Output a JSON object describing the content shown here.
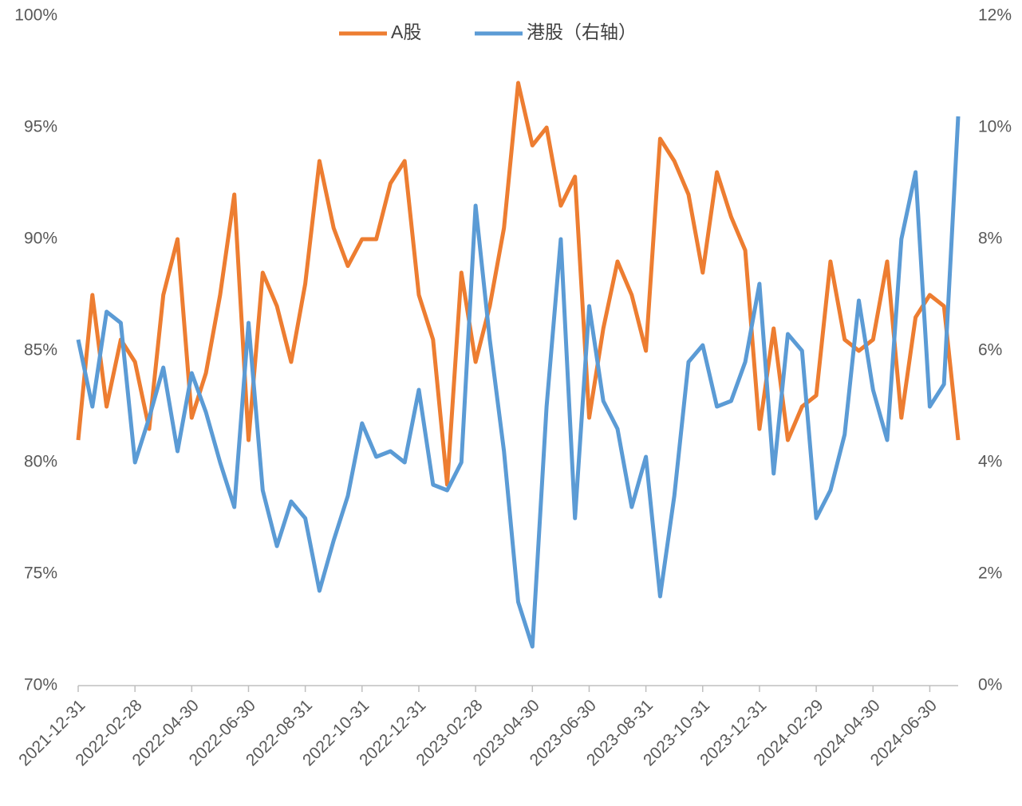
{
  "chart_data": {
    "type": "line",
    "categories": [
      "2021-12-31",
      null,
      null,
      null,
      "2022-02-28",
      null,
      null,
      null,
      "2022-04-30",
      null,
      null,
      null,
      "2022-06-30",
      null,
      null,
      null,
      "2022-08-31",
      null,
      null,
      null,
      "2022-10-31",
      null,
      null,
      null,
      "2022-12-31",
      null,
      null,
      null,
      "2023-02-28",
      null,
      null,
      null,
      "2023-04-30",
      null,
      null,
      null,
      "2023-06-30",
      null,
      null,
      null,
      "2023-08-31",
      null,
      null,
      null,
      "2023-10-31",
      null,
      null,
      null,
      "2023-12-31",
      null,
      null,
      null,
      "2024-02-29",
      null,
      null,
      null,
      "2024-04-30",
      null,
      null,
      null,
      "2024-06-30",
      null,
      null
    ],
    "series": [
      {
        "name": "A股",
        "color": "#ed7d31",
        "values": [
          81,
          87.5,
          82.5,
          85.5,
          84.5,
          81.5,
          87.5,
          90,
          82,
          84,
          87.5,
          92,
          81,
          88.5,
          87,
          84.5,
          88,
          93.5,
          90.5,
          88.8,
          90,
          90,
          92.5,
          93.5,
          87.5,
          85.5,
          79,
          88.5,
          84.5,
          87,
          90.5,
          97,
          94.2,
          95,
          91.5,
          92.8,
          82,
          86,
          89,
          87.5,
          85,
          94.5,
          93.5,
          92,
          88.5,
          93,
          91,
          89.5,
          81.5,
          86,
          81,
          82.5,
          83,
          89,
          85.5,
          85,
          85.5,
          89,
          82,
          86.5,
          87.5,
          87,
          81
        ]
      },
      {
        "name": "港股（右轴）",
        "color": "#5b9bd5",
        "axis": "y2",
        "values": [
          6.2,
          5.0,
          6.7,
          6.5,
          4.0,
          4.8,
          5.7,
          4.2,
          5.6,
          4.9,
          4.0,
          3.2,
          6.5,
          3.5,
          2.5,
          3.3,
          3.0,
          1.7,
          2.6,
          3.4,
          4.7,
          4.1,
          4.2,
          4.0,
          5.3,
          3.6,
          3.5,
          4.0,
          8.6,
          6.2,
          4.2,
          1.5,
          0.7,
          5.0,
          8.0,
          3.0,
          6.8,
          5.1,
          4.6,
          3.2,
          4.1,
          1.6,
          3.4,
          5.8,
          6.1,
          5.0,
          5.1,
          5.8,
          7.2,
          3.8,
          6.3,
          6.0,
          3.0,
          3.5,
          4.5,
          6.9,
          5.3,
          4.4,
          8.0,
          9.2,
          5.0,
          5.4,
          10.2
        ]
      }
    ],
    "ylim": [
      70,
      100
    ],
    "yticks": [
      {
        "value": 70,
        "label": "70%"
      },
      {
        "value": 75,
        "label": "75%"
      },
      {
        "value": 80,
        "label": "80%"
      },
      {
        "value": 85,
        "label": "85%"
      },
      {
        "value": 90,
        "label": "90%"
      },
      {
        "value": 95,
        "label": "95%"
      },
      {
        "value": 100,
        "label": "100%"
      }
    ],
    "y2lim": [
      0,
      12
    ],
    "y2ticks": [
      {
        "value": 0,
        "label": "0%"
      },
      {
        "value": 2,
        "label": "2%"
      },
      {
        "value": 4,
        "label": "4%"
      },
      {
        "value": 6,
        "label": "6%"
      },
      {
        "value": 8,
        "label": "8%"
      },
      {
        "value": 10,
        "label": "10%"
      },
      {
        "value": 12,
        "label": "12%"
      }
    ],
    "legend": "top"
  }
}
